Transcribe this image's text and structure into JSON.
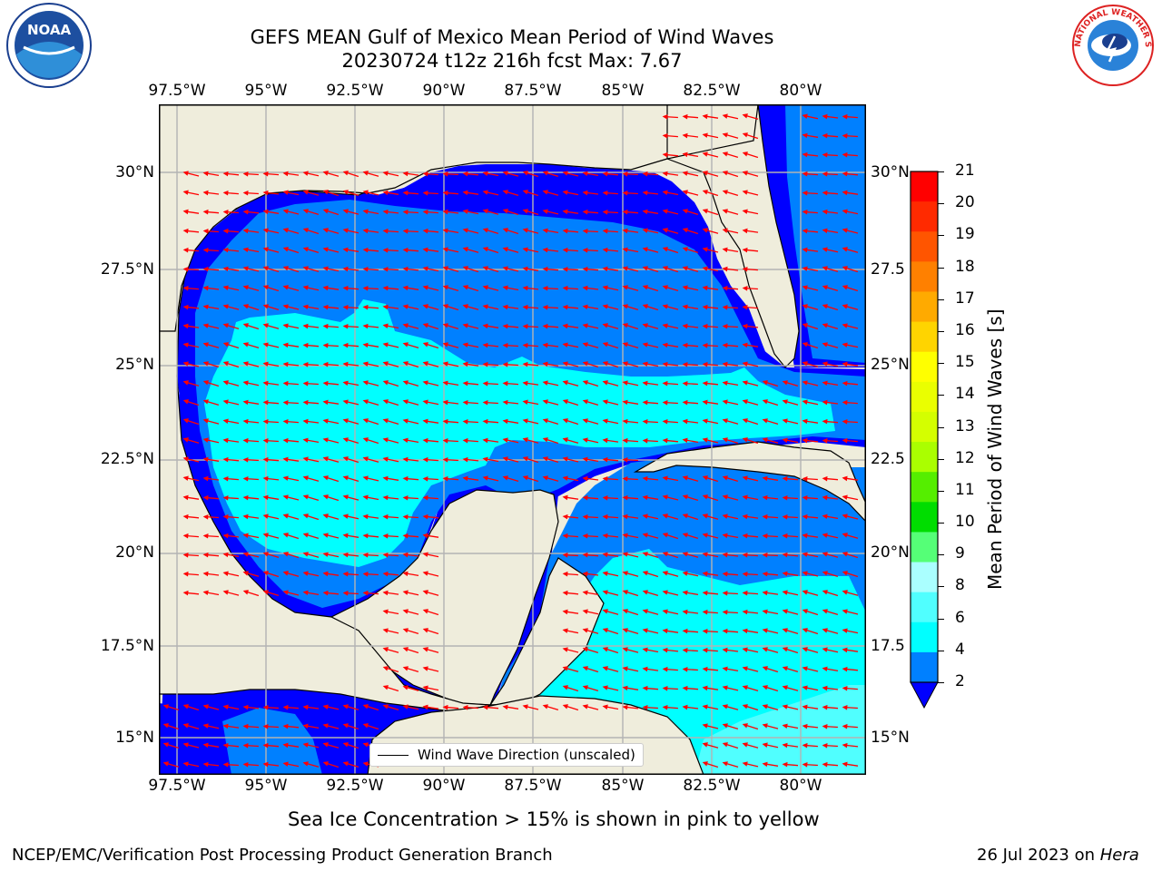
{
  "title": {
    "line1": "GEFS MEAN Gulf of Mexico Mean Period of Wind Waves",
    "line2": "20230724 t12z 216h fcst   Max: 7.67"
  },
  "map": {
    "lon_labels": [
      "97.5°W",
      "95°W",
      "92.5°W",
      "90°W",
      "87.5°W",
      "85°W",
      "82.5°W",
      "80°W"
    ],
    "lat_labels_left": [
      "30°N",
      "27.5°N",
      "25°N",
      "22.5°N",
      "20°N",
      "17.5°N",
      "15°N"
    ],
    "lat_labels_right": [
      "30°N",
      "27.5",
      "25°N",
      "22.5",
      "20°N",
      "17.5",
      "15°N"
    ],
    "legend": "Wind Wave Direction (unscaled)",
    "colors": {
      "land": "#efeddc",
      "ocean_lo": "#0000ff",
      "ocean_mid": "#0080ff",
      "ocean_hi": "#00ffff",
      "ocean_top": "#50ffff",
      "arrow": "#ff0000",
      "grid": "#b3b3b3"
    }
  },
  "colorbar": {
    "label": "Mean Period of Wind Waves [s]",
    "ticks": [
      "21",
      "20",
      "19",
      "18",
      "17",
      "16",
      "15",
      "14",
      "13",
      "12",
      "11",
      "10",
      "9",
      "8",
      "6",
      "4",
      "2"
    ],
    "colors": [
      "#ff0000",
      "#ff2a00",
      "#ff5500",
      "#ff8000",
      "#ffaa00",
      "#ffd400",
      "#ffff00",
      "#eaff00",
      "#d4ff00",
      "#aaff00",
      "#55ee00",
      "#00dd00",
      "#55ff77",
      "#aaffff",
      "#50ffff",
      "#00ffff",
      "#0080ff"
    ],
    "under_color": "#0000ff"
  },
  "logos": {
    "noaa_text": "NOAA",
    "nws_text": "NATIONAL WEATHER SERVICE"
  },
  "note": "Sea Ice Concentration > 15% is shown in pink to yellow",
  "footer": {
    "left": "NCEP/EMC/Verification Post Processing Product Generation Branch",
    "right_prefix": "26 Jul 2023 on ",
    "right_host": "Hera"
  }
}
